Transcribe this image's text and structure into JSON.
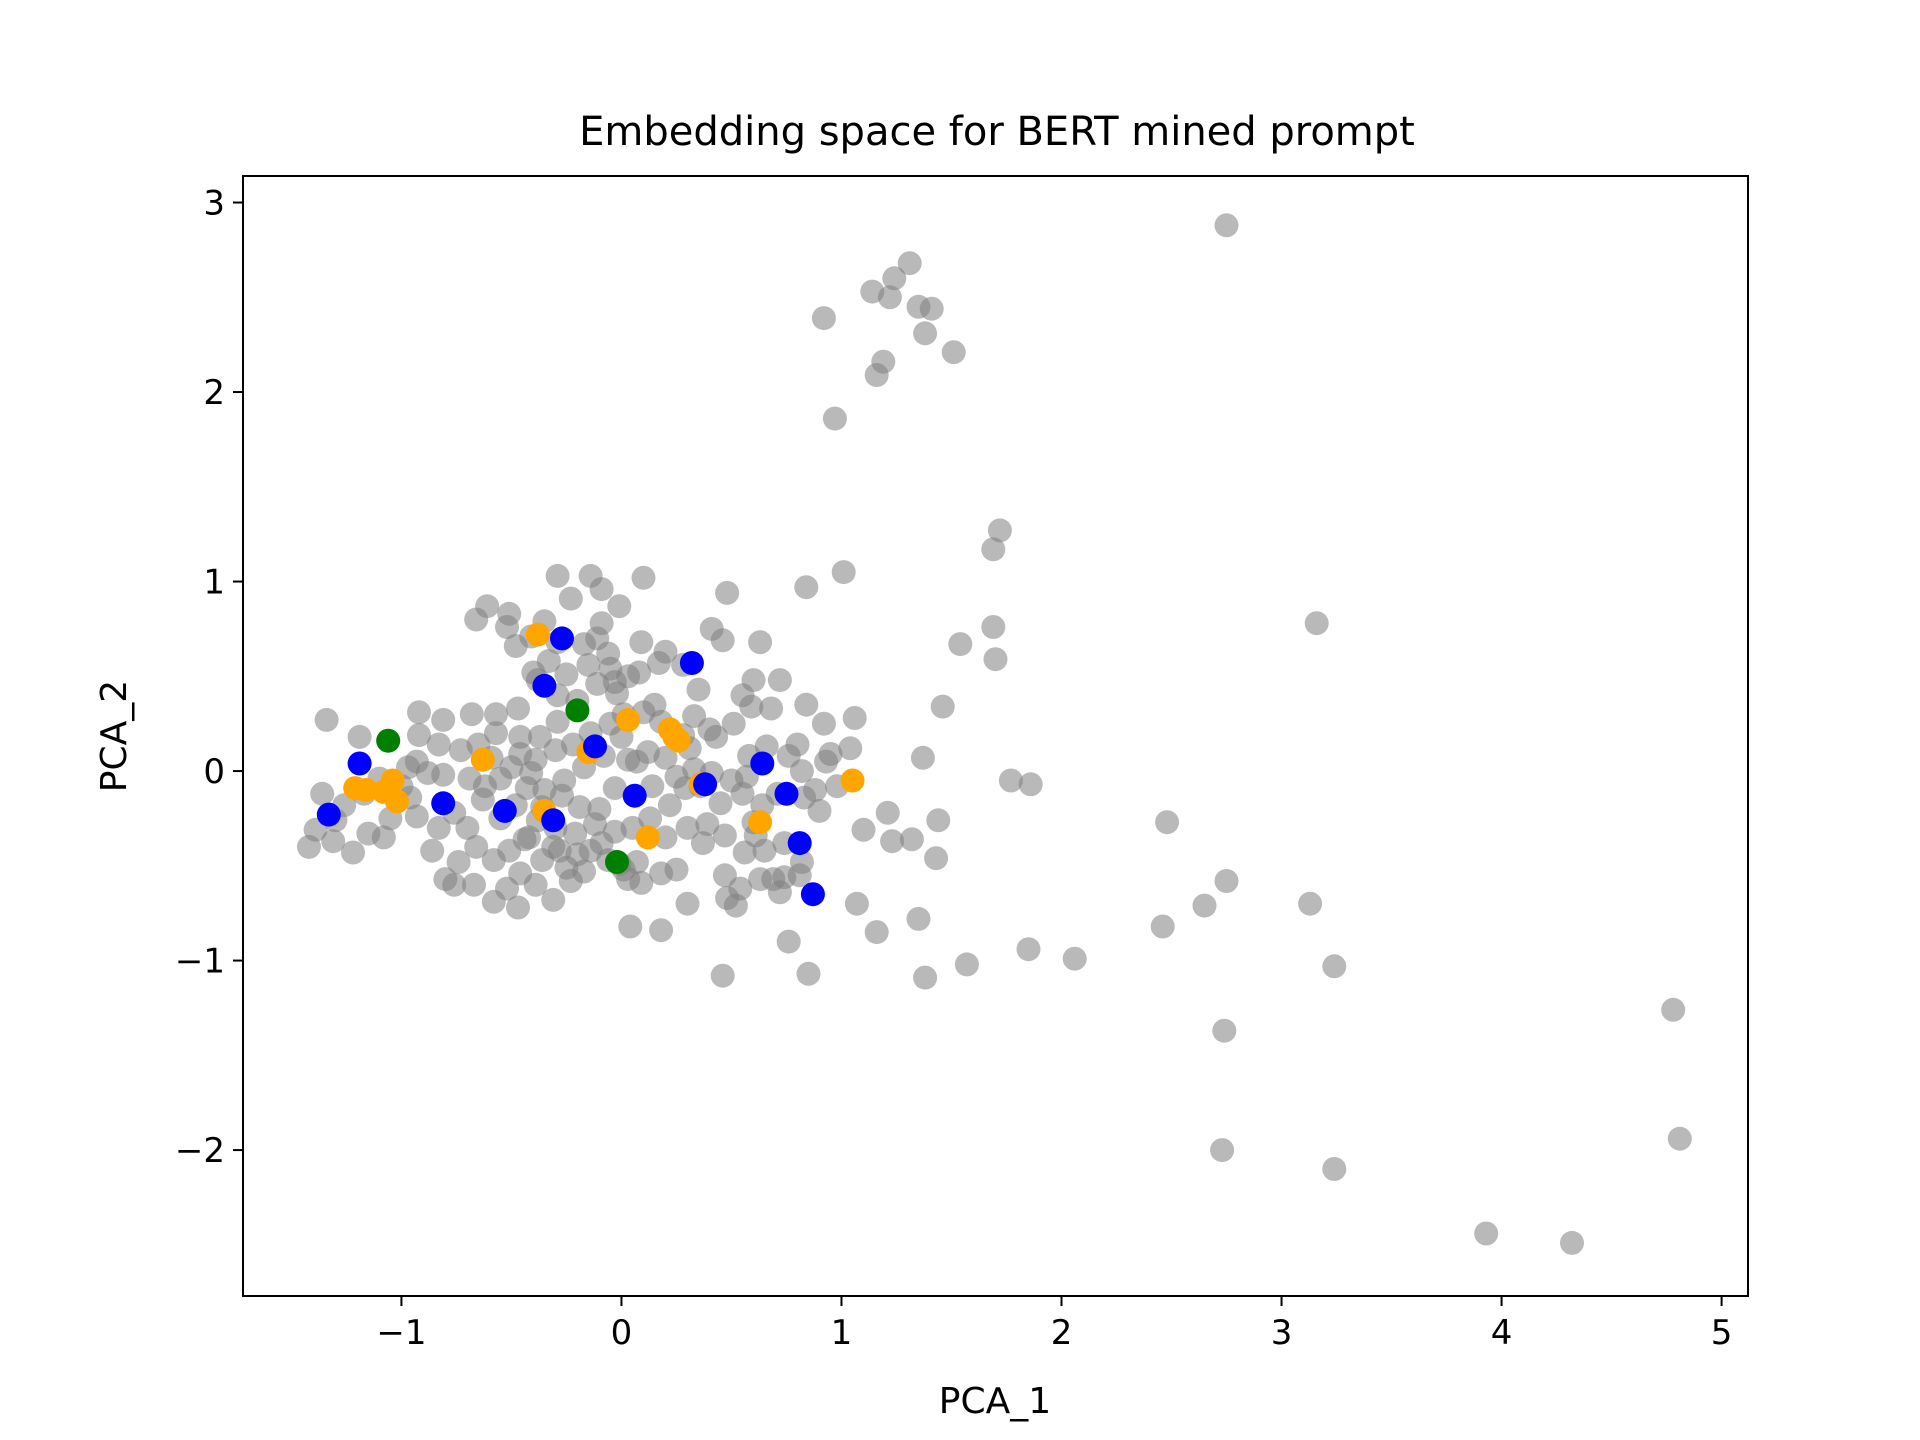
{
  "chart_data": {
    "type": "scatter",
    "title": "Embedding space for BERT mined prompt",
    "xlabel": "PCA_1",
    "ylabel": "PCA_2",
    "xlim": [
      -1.72,
      5.12
    ],
    "ylim": [
      -2.77,
      3.14
    ],
    "grid": false,
    "xticks": [
      -1,
      0,
      1,
      2,
      3,
      4,
      5
    ],
    "yticks": [
      -2,
      -1,
      0,
      1,
      2,
      3
    ],
    "colors": {
      "gray": "#808080",
      "blue": "#0000ff",
      "orange": "#ffa500",
      "green": "#008000"
    },
    "series": [
      {
        "color": "gray",
        "opacity": 0.55,
        "points": [
          [
            2.75,
            2.88
          ],
          [
            1.31,
            2.68
          ],
          [
            1.24,
            2.6
          ],
          [
            1.14,
            2.53
          ],
          [
            1.22,
            2.5
          ],
          [
            1.35,
            2.45
          ],
          [
            1.41,
            2.44
          ],
          [
            1.38,
            2.31
          ],
          [
            0.92,
            2.39
          ],
          [
            1.51,
            2.21
          ],
          [
            1.19,
            2.16
          ],
          [
            1.16,
            2.09
          ],
          [
            0.97,
            1.86
          ],
          [
            1.72,
            1.27
          ],
          [
            1.69,
            1.17
          ],
          [
            1.01,
            1.05
          ],
          [
            0.84,
            0.97
          ],
          [
            1.69,
            0.76
          ],
          [
            1.7,
            0.59
          ],
          [
            1.54,
            0.67
          ],
          [
            1.46,
            0.34
          ],
          [
            1.37,
            0.07
          ],
          [
            1.77,
            -0.05
          ],
          [
            1.86,
            -0.07
          ],
          [
            3.16,
            0.78
          ],
          [
            2.48,
            -0.27
          ],
          [
            1.44,
            -0.26
          ],
          [
            1.23,
            -0.37
          ],
          [
            1.32,
            -0.36
          ],
          [
            1.21,
            -0.22
          ],
          [
            1.43,
            -0.46
          ],
          [
            1.1,
            -0.31
          ],
          [
            1.07,
            -0.7
          ],
          [
            1.16,
            -0.85
          ],
          [
            1.35,
            -0.78
          ],
          [
            1.38,
            -1.09
          ],
          [
            1.57,
            -1.02
          ],
          [
            1.85,
            -0.94
          ],
          [
            2.06,
            -0.99
          ],
          [
            2.46,
            -0.82
          ],
          [
            2.65,
            -0.71
          ],
          [
            2.75,
            -0.58
          ],
          [
            3.13,
            -0.7
          ],
          [
            3.24,
            -1.03
          ],
          [
            2.74,
            -1.37
          ],
          [
            2.73,
            -2.0
          ],
          [
            3.24,
            -2.1
          ],
          [
            3.93,
            -2.44
          ],
          [
            4.32,
            -2.49
          ],
          [
            4.78,
            -1.26
          ],
          [
            4.81,
            -1.94
          ],
          [
            0.85,
            -1.07
          ],
          [
            0.46,
            -1.08
          ],
          [
            0.76,
            -0.9
          ],
          [
            0.04,
            -0.82
          ],
          [
            0.18,
            -0.84
          ],
          [
            0.3,
            -0.7
          ],
          [
            0.43,
            0.18
          ],
          [
            0.48,
            0.94
          ],
          [
            0.41,
            0.75
          ],
          [
            0.46,
            0.69
          ],
          [
            0.63,
            0.68
          ],
          [
            0.6,
            0.48
          ],
          [
            0.72,
            0.48
          ],
          [
            0.84,
            0.35
          ],
          [
            0.92,
            0.25
          ],
          [
            1.06,
            0.28
          ],
          [
            1.04,
            0.12
          ],
          [
            0.93,
            0.05
          ],
          [
            0.8,
            0.14
          ],
          [
            0.68,
            0.33
          ],
          [
            0.55,
            0.4
          ],
          [
            0.35,
            0.43
          ],
          [
            0.28,
            0.56
          ],
          [
            0.17,
            0.57
          ],
          [
            0.2,
            0.63
          ],
          [
            0.09,
            0.68
          ],
          [
            -0.01,
            0.87
          ],
          [
            -0.09,
            0.96
          ],
          [
            -0.14,
            1.03
          ],
          [
            -0.29,
            1.03
          ],
          [
            0.1,
            1.02
          ],
          [
            -0.23,
            0.91
          ],
          [
            -0.09,
            0.78
          ],
          [
            -0.17,
            0.67
          ],
          [
            -0.29,
            0.68
          ],
          [
            -0.41,
            0.71
          ],
          [
            -0.48,
            0.66
          ],
          [
            -0.52,
            0.76
          ],
          [
            -0.61,
            0.87
          ],
          [
            -0.66,
            0.8
          ],
          [
            -0.51,
            0.83
          ],
          [
            -0.35,
            0.79
          ],
          [
            -0.06,
            0.62
          ],
          [
            0.03,
            0.5
          ],
          [
            -0.03,
            0.47
          ],
          [
            -0.11,
            0.46
          ],
          [
            -0.2,
            0.37
          ],
          [
            -0.29,
            0.4
          ],
          [
            -0.38,
            0.48
          ],
          [
            -0.47,
            0.33
          ],
          [
            -0.57,
            0.3
          ],
          [
            -0.68,
            0.3
          ],
          [
            -0.81,
            0.27
          ],
          [
            -0.92,
            0.19
          ],
          [
            -0.92,
            0.31
          ],
          [
            -1.06,
            0.16
          ],
          [
            -1.19,
            0.18
          ],
          [
            -1.34,
            0.27
          ],
          [
            -1.36,
            -0.12
          ],
          [
            -1.39,
            -0.31
          ],
          [
            -1.42,
            -0.4
          ],
          [
            -1.31,
            -0.37
          ],
          [
            -1.22,
            -0.43
          ],
          [
            -1.15,
            -0.33
          ],
          [
            -1.08,
            -0.35
          ],
          [
            -1.05,
            -0.25
          ],
          [
            -0.96,
            -0.14
          ],
          [
            -0.88,
            -0.01
          ],
          [
            -0.93,
            0.05
          ],
          [
            -0.81,
            -0.02
          ],
          [
            -0.76,
            -0.22
          ],
          [
            -0.83,
            -0.3
          ],
          [
            -0.86,
            -0.42
          ],
          [
            -0.74,
            -0.48
          ],
          [
            -0.8,
            -0.57
          ],
          [
            -0.76,
            -0.6
          ],
          [
            -0.67,
            -0.6
          ],
          [
            -0.58,
            -0.69
          ],
          [
            -0.52,
            -0.62
          ],
          [
            -0.47,
            -0.72
          ],
          [
            -0.58,
            -0.47
          ],
          [
            -0.51,
            -0.42
          ],
          [
            -0.42,
            -0.35
          ],
          [
            -0.31,
            -0.4
          ],
          [
            -0.25,
            -0.51
          ],
          [
            -0.17,
            -0.53
          ],
          [
            -0.14,
            -0.42
          ],
          [
            -0.06,
            -0.47
          ],
          [
            0.01,
            -0.52
          ],
          [
            0.07,
            -0.48
          ],
          [
            0.18,
            -0.54
          ],
          [
            0.25,
            -0.52
          ],
          [
            0.2,
            -0.35
          ],
          [
            0.3,
            -0.3
          ],
          [
            0.39,
            -0.28
          ],
          [
            0.47,
            -0.34
          ],
          [
            0.56,
            -0.43
          ],
          [
            0.47,
            -0.55
          ],
          [
            0.52,
            -0.71
          ],
          [
            0.48,
            -0.67
          ],
          [
            0.63,
            -0.57
          ],
          [
            0.69,
            -0.57
          ],
          [
            0.74,
            -0.56
          ],
          [
            0.65,
            -0.42
          ],
          [
            0.72,
            -0.64
          ],
          [
            0.81,
            -0.55
          ],
          [
            0.9,
            -0.21
          ],
          [
            0.83,
            -0.14
          ],
          [
            0.71,
            -0.12
          ],
          [
            0.64,
            -0.18
          ],
          [
            0.55,
            -0.12
          ],
          [
            0.45,
            -0.17
          ],
          [
            0.5,
            -0.05
          ],
          [
            0.41,
            -0.01
          ],
          [
            0.33,
            0.01
          ],
          [
            0.25,
            -0.03
          ],
          [
            0.14,
            -0.08
          ],
          [
            0.07,
            0.05
          ],
          [
            0.03,
            0.06
          ],
          [
            -0.03,
            -0.09
          ],
          [
            -0.1,
            -0.2
          ],
          [
            -0.19,
            -0.19
          ],
          [
            -0.27,
            -0.13
          ],
          [
            -0.36,
            -0.19
          ],
          [
            -0.43,
            -0.09
          ],
          [
            -0.48,
            -0.18
          ],
          [
            -0.55,
            -0.04
          ],
          [
            -0.62,
            -0.08
          ],
          [
            -0.69,
            -0.04
          ],
          [
            -0.73,
            0.11
          ],
          [
            -0.65,
            0.14
          ],
          [
            -0.57,
            0.2
          ],
          [
            -0.46,
            0.18
          ],
          [
            -0.39,
            0.06
          ],
          [
            -0.3,
            0.11
          ],
          [
            -0.22,
            0.14
          ],
          [
            -0.14,
            0.2
          ],
          [
            -0.05,
            0.25
          ],
          [
            0.01,
            0.3
          ],
          [
            0.1,
            0.31
          ],
          [
            0.18,
            0.26
          ],
          [
            0.28,
            0.19
          ],
          [
            0.33,
            0.29
          ],
          [
            0.4,
            0.22
          ],
          [
            0.31,
            0.12
          ],
          [
            0.2,
            0.07
          ],
          [
            0.12,
            0.1
          ],
          [
            0.22,
            -0.18
          ],
          [
            0.13,
            -0.25
          ],
          [
            0.05,
            -0.3
          ],
          [
            -0.03,
            -0.32
          ],
          [
            -0.12,
            -0.28
          ],
          [
            -0.21,
            -0.33
          ],
          [
            -0.3,
            -0.3
          ],
          [
            -0.38,
            -0.26
          ],
          [
            -0.44,
            -0.36
          ],
          [
            -0.36,
            -0.47
          ],
          [
            -0.28,
            -0.42
          ],
          [
            -0.2,
            -0.44
          ],
          [
            -0.09,
            -0.38
          ],
          [
            -0.01,
            -0.49
          ],
          [
            0.03,
            -0.57
          ],
          [
            -0.31,
            -0.68
          ],
          [
            -0.46,
            -0.54
          ],
          [
            -0.66,
            -0.4
          ],
          [
            -0.93,
            -0.24
          ],
          [
            -1.0,
            -0.08
          ],
          [
            -1.1,
            -0.04
          ],
          [
            -1.17,
            -0.12
          ],
          [
            -1.26,
            -0.18
          ],
          [
            -1.3,
            -0.26
          ],
          [
            -0.97,
            0.02
          ],
          [
            -0.83,
            0.14
          ],
          [
            -0.59,
            0.07
          ],
          [
            -0.5,
            0.02
          ],
          [
            -0.41,
            -0.01
          ],
          [
            -0.35,
            -0.1
          ],
          [
            -0.26,
            -0.05
          ],
          [
            -0.17,
            0.02
          ],
          [
            -0.08,
            0.08
          ],
          [
            0.0,
            0.18
          ],
          [
            -0.02,
            0.41
          ],
          [
            0.08,
            0.52
          ],
          [
            0.15,
            0.35
          ],
          [
            0.51,
            0.25
          ],
          [
            0.58,
            0.08
          ],
          [
            0.66,
            0.13
          ],
          [
            0.76,
            0.08
          ],
          [
            0.82,
            0.0
          ],
          [
            0.95,
            0.09
          ],
          [
            0.88,
            -0.1
          ],
          [
            0.98,
            -0.08
          ],
          [
            0.6,
            -0.27
          ],
          [
            0.61,
            -0.34
          ],
          [
            0.74,
            -0.38
          ],
          [
            0.82,
            -0.48
          ],
          [
            0.54,
            -0.62
          ],
          [
            -0.11,
            0.7
          ],
          [
            -0.05,
            0.54
          ],
          [
            -0.15,
            0.56
          ],
          [
            -0.25,
            0.51
          ],
          [
            -0.33,
            0.58
          ],
          [
            -0.4,
            0.52
          ],
          [
            -0.29,
            0.26
          ],
          [
            -0.37,
            0.18
          ],
          [
            -0.46,
            0.09
          ],
          [
            -0.55,
            -0.25
          ],
          [
            -0.63,
            -0.15
          ],
          [
            -0.7,
            -0.3
          ],
          [
            -0.39,
            -0.6
          ],
          [
            -0.23,
            -0.58
          ],
          [
            0.09,
            -0.59
          ],
          [
            0.37,
            -0.38
          ],
          [
            0.29,
            -0.09
          ],
          [
            0.36,
            -0.08
          ],
          [
            0.57,
            -0.03
          ],
          [
            0.59,
            0.34
          ]
        ]
      },
      {
        "color": "orange",
        "opacity": 1,
        "points": [
          [
            -1.21,
            -0.09
          ],
          [
            -1.16,
            -0.1
          ],
          [
            -1.08,
            -0.11
          ],
          [
            -1.04,
            -0.05
          ],
          [
            -1.02,
            -0.16
          ],
          [
            -0.63,
            0.06
          ],
          [
            -0.35,
            -0.21
          ],
          [
            -0.15,
            0.1
          ],
          [
            0.03,
            0.27
          ],
          [
            0.12,
            -0.35
          ],
          [
            0.24,
            0.18
          ],
          [
            0.26,
            0.16
          ],
          [
            0.63,
            -0.27
          ],
          [
            1.05,
            -0.05
          ],
          [
            -0.38,
            0.72
          ],
          [
            0.22,
            0.22
          ],
          [
            0.36,
            -0.07
          ]
        ]
      },
      {
        "color": "blue",
        "opacity": 1,
        "points": [
          [
            -1.33,
            -0.23
          ],
          [
            -1.19,
            0.04
          ],
          [
            -0.81,
            -0.17
          ],
          [
            -0.53,
            -0.21
          ],
          [
            -0.35,
            0.45
          ],
          [
            -0.31,
            -0.26
          ],
          [
            -0.27,
            0.7
          ],
          [
            -0.12,
            0.13
          ],
          [
            0.06,
            -0.13
          ],
          [
            0.32,
            0.57
          ],
          [
            0.38,
            -0.07
          ],
          [
            0.64,
            0.04
          ],
          [
            0.75,
            -0.12
          ],
          [
            0.81,
            -0.38
          ],
          [
            0.87,
            -0.65
          ]
        ]
      },
      {
        "color": "green",
        "opacity": 1,
        "points": [
          [
            -1.06,
            0.16
          ],
          [
            -0.2,
            0.32
          ],
          [
            -0.02,
            -0.48
          ]
        ]
      }
    ]
  }
}
